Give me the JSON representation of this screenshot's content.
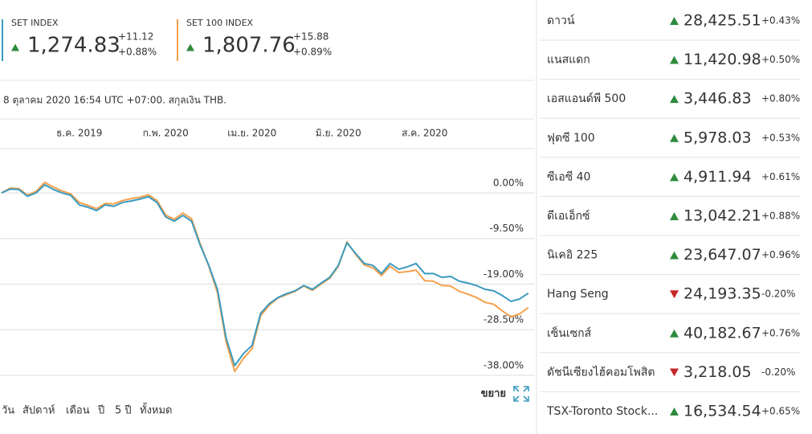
{
  "chart_data": {
    "type": "line",
    "categories": [
      null,
      null,
      null,
      null,
      null,
      null,
      null,
      null,
      null,
      "ธ.ค. 2019",
      null,
      null,
      null,
      null,
      null,
      null,
      null,
      null,
      null,
      "ก.พ. 2020",
      null,
      null,
      null,
      null,
      null,
      null,
      null,
      null,
      null,
      "เม.ย. 2020",
      null,
      null,
      null,
      null,
      null,
      null,
      null,
      null,
      null,
      "มิ.ย. 2020",
      null,
      null,
      null,
      null,
      null,
      null,
      null,
      null,
      null,
      "ส.ค. 2020",
      null,
      null,
      null,
      null,
      null,
      null,
      null,
      null,
      null,
      null,
      null,
      null
    ],
    "series": [
      {
        "name": "SET INDEX",
        "color": "#3a9bbf",
        "values": [
          0,
          0.8,
          0.7,
          -0.7,
          0,
          1.7,
          0.7,
          0,
          -0.5,
          -2.5,
          -3.0,
          -3.7,
          -2.5,
          -2.8,
          -2.0,
          -1.7,
          -1.3,
          -0.8,
          -2.0,
          -5.0,
          -5.9,
          -4.7,
          -5.9,
          -10.9,
          -15.1,
          -20.1,
          -30.2,
          -36.0,
          -33.5,
          -31.8,
          -25.1,
          -23.1,
          -21.8,
          -21.0,
          -20.4,
          -19.3,
          -20.1,
          -18.8,
          -17.6,
          -15.1,
          -10.4,
          -12.6,
          -14.7,
          -15.1,
          -16.8,
          -14.7,
          -15.9,
          -15.4,
          -14.7,
          -16.8,
          -16.8,
          -17.6,
          -17.4,
          -18.4,
          -18.8,
          -19.3,
          -20.1,
          -20.4,
          -21.4,
          -22.6,
          -22.1,
          -20.9
        ]
      },
      {
        "name": "SET 100 INDEX",
        "color": "#f5a04a",
        "values": [
          0,
          1.0,
          0.9,
          -0.5,
          0.3,
          2.2,
          1.2,
          0.4,
          -0.2,
          -2.0,
          -2.6,
          -3.3,
          -2.2,
          -2.3,
          -1.6,
          -1.2,
          -0.9,
          -0.4,
          -1.6,
          -4.6,
          -5.5,
          -4.2,
          -5.4,
          -10.6,
          -15.3,
          -20.8,
          -31.0,
          -37.2,
          -34.5,
          -32.5,
          -25.6,
          -23.4,
          -21.9,
          -21.2,
          -20.5,
          -19.4,
          -20.3,
          -19.0,
          -17.8,
          -15.3,
          -10.2,
          -12.8,
          -15.0,
          -15.6,
          -17.2,
          -15.3,
          -16.6,
          -16.4,
          -16.1,
          -18.3,
          -18.4,
          -19.3,
          -19.4,
          -20.5,
          -21.1,
          -21.8,
          -22.8,
          -23.2,
          -24.6,
          -25.8,
          -25.2,
          -23.9
        ]
      }
    ],
    "ylim": [
      -40,
      8
    ],
    "yticks": [
      {
        "value": 0,
        "label": "0.00%"
      },
      {
        "value": -9.5,
        "label": "-9.50%"
      },
      {
        "value": -19,
        "label": "-19.00%"
      },
      {
        "value": -28.5,
        "label": "-28.50%"
      },
      {
        "value": -38,
        "label": "-38.00%"
      }
    ],
    "grid": true
  },
  "indices": [
    {
      "value": "1,274.83",
      "change": "+11.12",
      "percent": "+0.88%",
      "direction": "up"
    },
    {
      "value": "1,807.76",
      "change": "+15.88",
      "percent": "+0.89%",
      "direction": "up"
    }
  ],
  "timestamp": "8 ตุลาคม 2020 16:54 UTC +07:00. สกุลเงิน THB.",
  "expand": "ขยาย",
  "periods": [
    "วัน",
    "สัปดาห์",
    "เดือน",
    "ปี",
    "5 ปี",
    "ทั้งหมด"
  ],
  "markets": [
    {
      "name": "ดาวน์",
      "value": "28,425.51",
      "change": "+0.43%",
      "direction": "up"
    },
    {
      "name": "แนสแดก",
      "value": "11,420.98",
      "change": "+0.50%",
      "direction": "up"
    },
    {
      "name": "เอสแอนด์พี 500",
      "value": "3,446.83",
      "change": "+0.80%",
      "direction": "up"
    },
    {
      "name": "ฟุตซี 100",
      "value": "5,978.03",
      "change": "+0.53%",
      "direction": "up"
    },
    {
      "name": "ซีเอซี 40",
      "value": "4,911.94",
      "change": "+0.61%",
      "direction": "up"
    },
    {
      "name": "ดีเอเอ็กซ์",
      "value": "13,042.21",
      "change": "+0.88%",
      "direction": "up"
    },
    {
      "name": "นิเคอิ 225",
      "value": "23,647.07",
      "change": "+0.96%",
      "direction": "up"
    },
    {
      "name": "Hang Seng",
      "value": "24,193.35",
      "change": "-0.20%",
      "direction": "down"
    },
    {
      "name": "เซ็นเซกส์",
      "value": "40,182.67",
      "change": "+0.76%",
      "direction": "up"
    },
    {
      "name": "ดัชนีเซียงไฮ้คอมโพสิต",
      "value": "3,218.05",
      "change": "-0.20%",
      "direction": "down"
    },
    {
      "name": "TSX-Toronto Stock...",
      "value": "16,534.54",
      "change": "+0.65%",
      "direction": "up"
    }
  ]
}
